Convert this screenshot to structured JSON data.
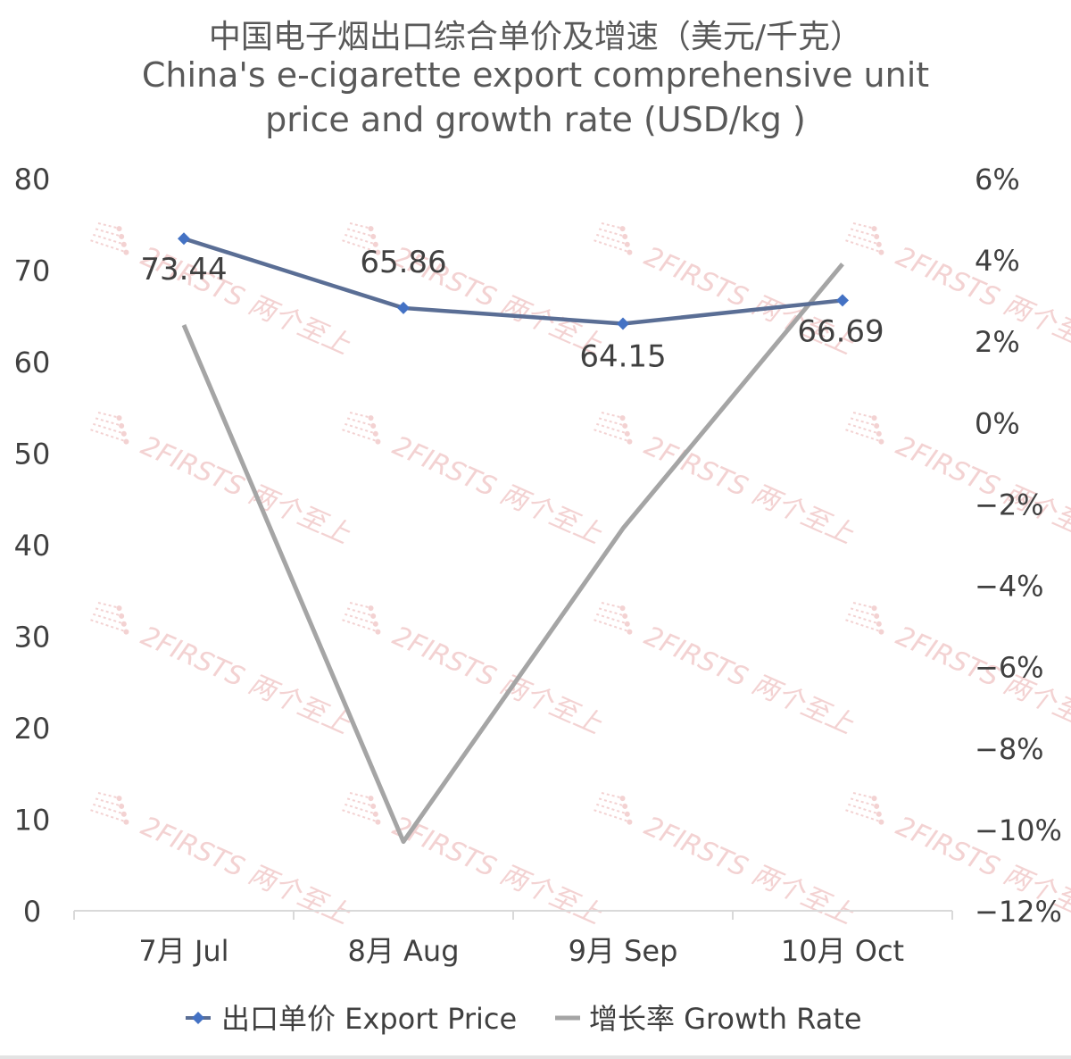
{
  "title": {
    "chinese": "中国电子烟出口综合单价及增速（美元/千克）",
    "english_line1": "China's e-cigarette export comprehensive unit",
    "english_line2": "price and growth rate (USD/kg )"
  },
  "watermark": {
    "text": "2FIRSTS 两个至上"
  },
  "colors": {
    "export_price": "#5a6e95",
    "export_price_marker": "#4472c4",
    "growth_rate": "#a5a5a5",
    "axis": "#d9d9d9",
    "watermark": "#f0c4c4"
  },
  "chart_data": {
    "type": "line",
    "title": "中国电子烟出口综合单价及增速（美元/千克） China's e-cigarette export comprehensive unit price and growth rate (USD/kg )",
    "categories": [
      "7月 Jul",
      "8月 Aug",
      "9月 Sep",
      "10月 Oct"
    ],
    "series": [
      {
        "name": "出口单价 Export Price",
        "axis": "left",
        "marker": "diamond",
        "values": [
          73.44,
          65.86,
          64.15,
          66.69
        ],
        "labels": [
          "73.44",
          "65.86",
          "64.15",
          "66.69"
        ]
      },
      {
        "name": "增长率 Growth Rate",
        "axis": "right",
        "values": [
          2.4,
          -10.3,
          -2.6,
          3.9
        ]
      }
    ],
    "y_left": {
      "min": 0,
      "max": 80,
      "step": 10,
      "ticks": [
        "0",
        "10",
        "20",
        "30",
        "40",
        "50",
        "60",
        "70",
        "80"
      ]
    },
    "y_right": {
      "min": -12,
      "max": 6,
      "step": 2,
      "ticks": [
        "−12%",
        "−10%",
        "−8%",
        "−6%",
        "−4%",
        "−2%",
        "0%",
        "2%",
        "4%",
        "6%"
      ]
    },
    "grid": false,
    "legend": "bottom"
  }
}
